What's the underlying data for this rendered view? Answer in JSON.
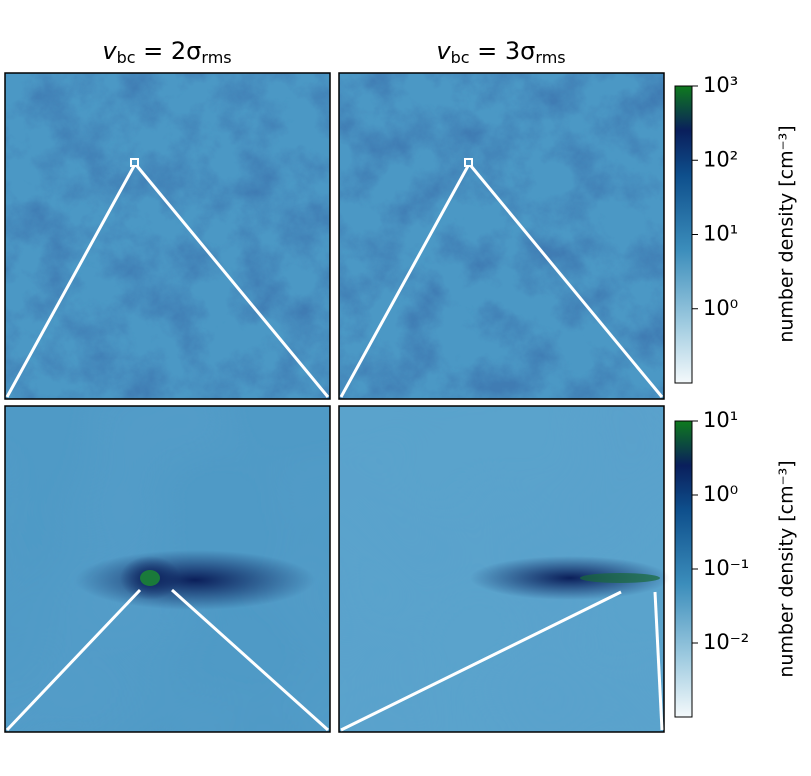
{
  "column_titles": [
    [
      "v",
      "bc",
      " = 2σ",
      "rms"
    ],
    [
      "v",
      "bc",
      " = 3σ",
      "rms"
    ]
  ],
  "chart_data": [
    {
      "type": "colorbar",
      "label": "number density [cm⁻³]",
      "log_scale": true,
      "ylim": [
        0.1,
        1000
      ],
      "yticks": [
        {
          "value": 1,
          "label": "10⁰"
        },
        {
          "value": 10,
          "label": "10¹"
        },
        {
          "value": 100,
          "label": "10²"
        },
        {
          "value": 1000,
          "label": "10³"
        }
      ]
    },
    {
      "type": "colorbar",
      "label": "number density [cm⁻³]",
      "log_scale": true,
      "ylim": [
        0.001,
        10
      ],
      "yticks": [
        {
          "value": 0.01,
          "label": "10⁻²"
        },
        {
          "value": 0.1,
          "label": "10⁻¹"
        },
        {
          "value": 1,
          "label": "10⁰"
        },
        {
          "value": 10,
          "label": "10¹"
        }
      ]
    }
  ]
}
